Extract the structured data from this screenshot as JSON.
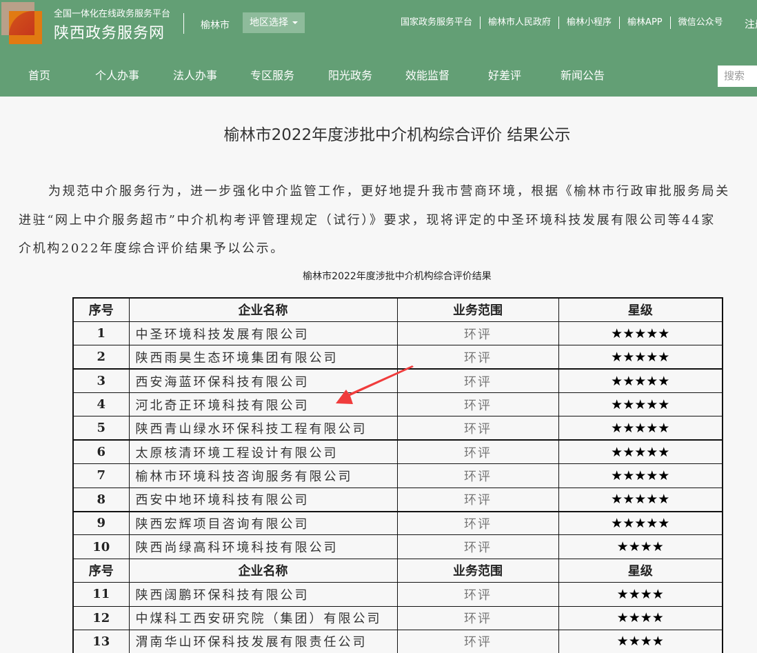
{
  "header": {
    "platform_subtitle": "全国一体化在线政务服务平台",
    "brand": "陕西政务服务网",
    "city": "榆林市",
    "region_select": "地区选择",
    "top_links": [
      "国家政务服务平台",
      "榆林市人民政府",
      "榆林小程序",
      "榆林APP",
      "微信公众号"
    ],
    "register": "注册",
    "nav": [
      "首页",
      "个人办事",
      "法人办事",
      "专区服务",
      "阳光政务",
      "效能监督",
      "好差评",
      "新闻公告"
    ],
    "search_placeholder": "搜索",
    "theme_color": "#639f75"
  },
  "article": {
    "title": "榆林市2022年度涉批中介机构综合评价 结果公示",
    "paragraph_lines": [
      "为规范中介服务行为，进一步强化中介监管工作，更好地提升我市营商环境，根据《榆林市行政审批服务局关",
      "进驻“网上中介服务超市”中介机构考评管理规定（试行）》要求，现将评定的中圣环境科技发展有限公司等44家",
      "介机构2022年度综合评价结果予以公示。"
    ],
    "table_caption": "榆林市2022年度涉批中介机构综合评价结果"
  },
  "table": {
    "headers": [
      "序号",
      "企业名称",
      "业务范围",
      "星级"
    ],
    "rows": [
      {
        "no": "1",
        "name": "中圣环境科技发展有限公司",
        "scope": "环评",
        "stars": "★★★★★"
      },
      {
        "no": "2",
        "name": "陕西雨昊生态环境集团有限公司",
        "scope": "环评",
        "stars": "★★★★★"
      },
      {
        "no": "3",
        "name": "西安海蓝环保科技有限公司",
        "scope": "环评",
        "stars": "★★★★★"
      },
      {
        "no": "4",
        "name": "河北奇正环境科技有限公司",
        "scope": "环评",
        "stars": "★★★★★"
      },
      {
        "no": "5",
        "name": "陕西青山绿水环保科技工程有限公司",
        "scope": "环评",
        "stars": "★★★★★"
      },
      {
        "no": "6",
        "name": "太原核清环境工程设计有限公司",
        "scope": "环评",
        "stars": "★★★★★"
      },
      {
        "no": "7",
        "name": "榆林市环境科技咨询服务有限公司",
        "scope": "环评",
        "stars": "★★★★★"
      },
      {
        "no": "8",
        "name": "西安中地环境科技有限公司",
        "scope": "环评",
        "stars": "★★★★★"
      },
      {
        "no": "9",
        "name": "陕西宏辉项目咨询有限公司",
        "scope": "环评",
        "stars": "★★★★★"
      },
      {
        "no": "10",
        "name": "陕西尚绿高科环境科技有限公司",
        "scope": "环评",
        "stars": "★★★★"
      },
      {
        "no": "11",
        "name": "陕西阔鹏环保科技有限公司",
        "scope": "环评",
        "stars": "★★★★"
      },
      {
        "no": "12",
        "name": "中煤科工西安研究院（集团）有限公司",
        "scope": "环评",
        "stars": "★★★★"
      },
      {
        "no": "13",
        "name": "渭南华山环保科技发展有限责任公司",
        "scope": "环评",
        "stars": "★★★★"
      }
    ]
  },
  "annotation_arrow_color": "#f03c3c"
}
